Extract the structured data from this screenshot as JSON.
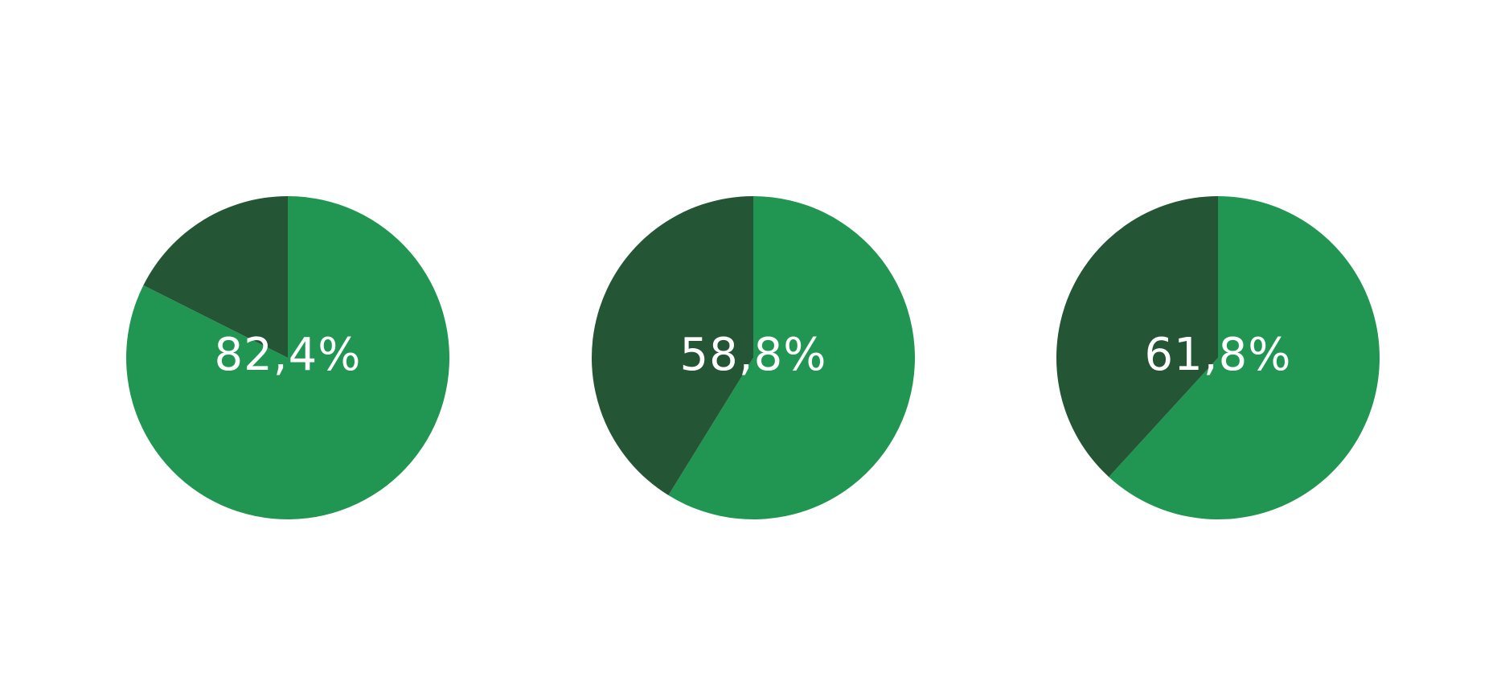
{
  "colors": {
    "primary": "#219653",
    "secondary": "#245535",
    "label": "#ffffff",
    "background": "#ffffff"
  },
  "chart_data": [
    {
      "type": "pie",
      "slices": [
        {
          "value": 82.4,
          "color": "#219653"
        },
        {
          "value": 17.6,
          "color": "#245535"
        }
      ],
      "label": "82,4%"
    },
    {
      "type": "pie",
      "slices": [
        {
          "value": 58.8,
          "color": "#219653"
        },
        {
          "value": 41.2,
          "color": "#245535"
        }
      ],
      "label": "58,8%"
    },
    {
      "type": "pie",
      "slices": [
        {
          "value": 61.8,
          "color": "#219653"
        },
        {
          "value": 38.2,
          "color": "#245535"
        }
      ],
      "label": "61,8%"
    }
  ]
}
